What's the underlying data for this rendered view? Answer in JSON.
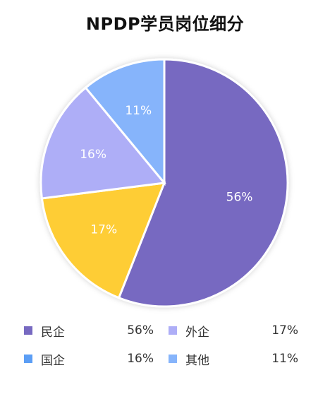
{
  "chart_data": {
    "type": "pie",
    "title": "NPDP学员岗位细分",
    "slices": [
      {
        "label": "民企",
        "value": 56,
        "color": "#7769c1",
        "value_label": "56%"
      },
      {
        "label": "外企",
        "value": 17,
        "color": "#fecd36",
        "value_label": "17%"
      },
      {
        "label": "国企",
        "value": 16,
        "color": "#aeaef7",
        "value_label": "16%"
      },
      {
        "label": "其他",
        "value": 11,
        "color": "#86b4fb",
        "value_label": "11%"
      }
    ]
  },
  "legend": [
    {
      "label": "民企",
      "value": "56%",
      "color": "#7769c1"
    },
    {
      "label": "外企",
      "value": "17%",
      "color": "#aeaef7"
    },
    {
      "label": "国企",
      "value": "16%",
      "color": "#5b9ef5"
    },
    {
      "label": "其他",
      "value": "11%",
      "color": "#86b4fb"
    }
  ]
}
